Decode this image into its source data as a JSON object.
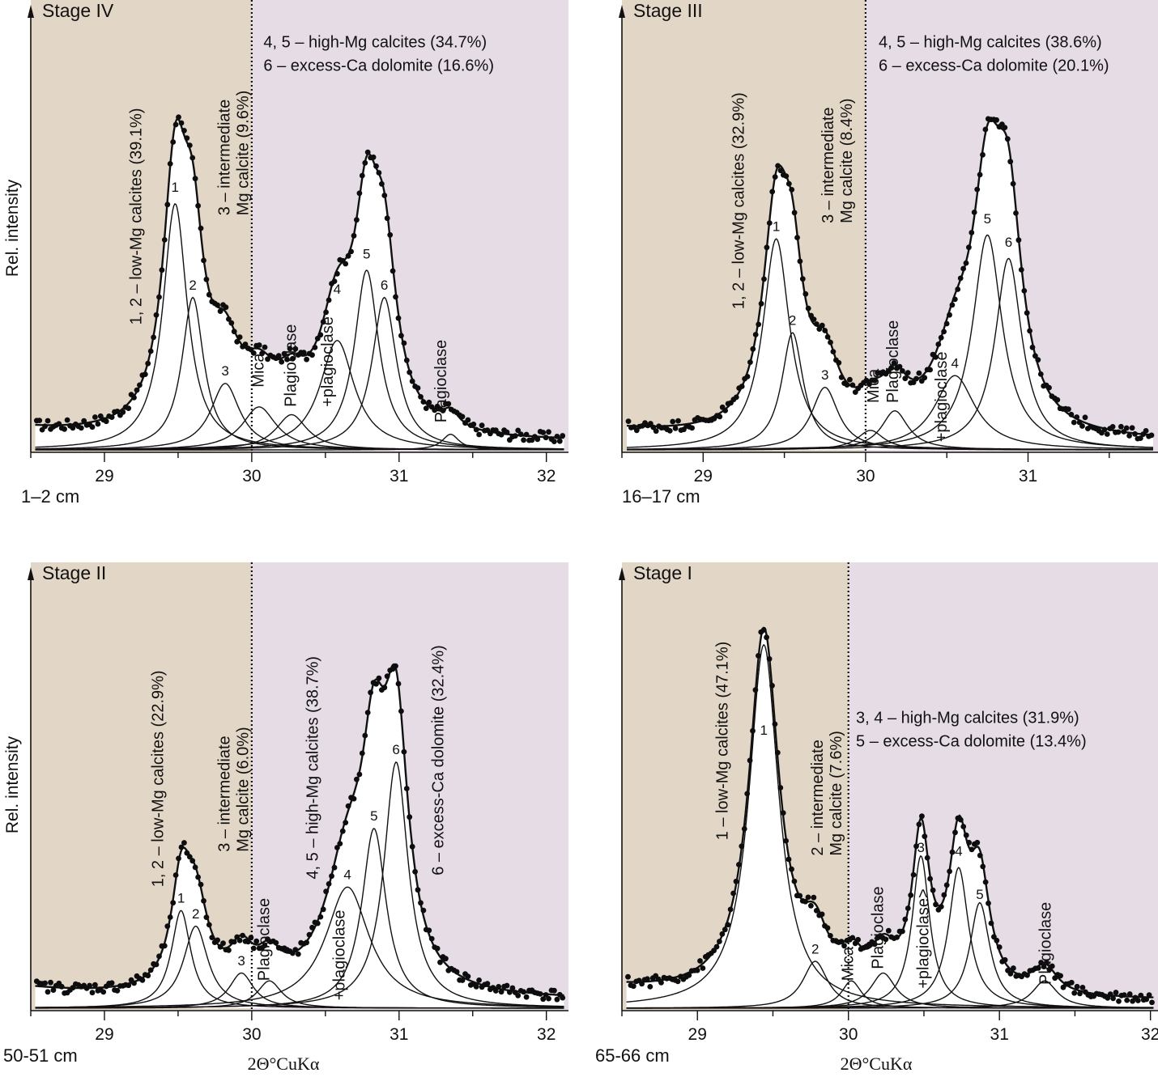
{
  "figure": {
    "y_axis_label": "Rel. intensity",
    "x_axis_label": "2Θ°CuKα"
  },
  "colors": {
    "left_zone": "#e2d6c6",
    "right_zone": "#e5dce6",
    "curve": "#111111",
    "points": "#0d0d0d"
  },
  "chart_data": [
    {
      "type": "line",
      "title": "Stage  IV",
      "depth": "1–2 cm",
      "xlim": [
        28.5,
        32.15
      ],
      "x_ticks": [
        29,
        30,
        31,
        32
      ],
      "zone_boundary": 30.0,
      "annotations": [
        {
          "text": "4, 5 – high-Mg calcites (34.7%)",
          "x": 30.08,
          "y": 1.03
        },
        {
          "text": "6 – excess-Ca dolomite (16.6%)",
          "x": 30.08,
          "y": 0.97
        }
      ],
      "vertical_labels": [
        {
          "lines": [
            "1, 2 – low-Mg calcites (39.1%)"
          ],
          "x": 29.25,
          "y": 0.32
        },
        {
          "lines": [
            "3 – intermediate",
            "Mg calcite (9.6%)"
          ],
          "x": 29.85,
          "y": 0.6
        },
        {
          "lines": [
            "Mica"
          ],
          "x": 30.08,
          "y": 0.16
        },
        {
          "lines": [
            "Plagioclase"
          ],
          "x": 30.3,
          "y": 0.11
        },
        {
          "lines": [
            "+plagioclase"
          ],
          "x": 30.55,
          "y": 0.11
        },
        {
          "lines": [
            "Plagioclase"
          ],
          "x": 31.32,
          "y": 0.07
        }
      ],
      "series": [
        {
          "label": "1",
          "center": 29.48,
          "height": 0.63,
          "width": 0.1,
          "label_y": 0.66
        },
        {
          "label": "2",
          "center": 29.6,
          "height": 0.39,
          "width": 0.09,
          "label_y": 0.41
        },
        {
          "label": "3",
          "center": 29.82,
          "height": 0.17,
          "width": 0.12,
          "label_y": 0.19
        },
        {
          "label": "",
          "center": 30.05,
          "height": 0.11,
          "width": 0.14
        },
        {
          "label": "",
          "center": 30.27,
          "height": 0.09,
          "width": 0.13
        },
        {
          "label": "4",
          "center": 30.58,
          "height": 0.28,
          "width": 0.14,
          "label_y": 0.4
        },
        {
          "label": "5",
          "center": 30.78,
          "height": 0.46,
          "width": 0.1,
          "label_y": 0.49
        },
        {
          "label": "6",
          "center": 30.9,
          "height": 0.39,
          "width": 0.1,
          "label_y": 0.41
        },
        {
          "label": "",
          "center": 31.35,
          "height": 0.04,
          "width": 0.07
        }
      ]
    },
    {
      "type": "line",
      "title": "Stage III",
      "depth": "16–17 cm",
      "xlim": [
        28.5,
        31.8
      ],
      "x_ticks": [
        29,
        30,
        31
      ],
      "zone_boundary": 30.0,
      "annotations": [
        {
          "text": "4, 5 – high-Mg calcites (38.6%)",
          "x": 30.08,
          "y": 1.03
        },
        {
          "text": "6 – excess-Ca dolomite (20.1%)",
          "x": 30.08,
          "y": 0.97
        }
      ],
      "vertical_labels": [
        {
          "lines": [
            "1, 2 – low-Mg calcites (32.9%)"
          ],
          "x": 29.25,
          "y": 0.36
        },
        {
          "lines": [
            "3 – intermediate",
            "Mg calcite (8.4%)"
          ],
          "x": 29.8,
          "y": 0.58
        },
        {
          "lines": [
            "Mica"
          ],
          "x": 30.08,
          "y": 0.12
        },
        {
          "lines": [
            "Plagioclase"
          ],
          "x": 30.2,
          "y": 0.12
        },
        {
          "lines": [
            "+plagioclase"
          ],
          "x": 30.5,
          "y": 0.02
        }
      ],
      "series": [
        {
          "label": "1",
          "center": 29.45,
          "height": 0.54,
          "width": 0.1,
          "label_y": 0.56
        },
        {
          "label": "2",
          "center": 29.55,
          "height": 0.3,
          "width": 0.08,
          "label_y": 0.32
        },
        {
          "label": "3",
          "center": 29.75,
          "height": 0.16,
          "width": 0.1,
          "label_y": 0.18
        },
        {
          "label": "",
          "center": 30.03,
          "height": 0.05,
          "width": 0.1
        },
        {
          "label": "",
          "center": 30.18,
          "height": 0.1,
          "width": 0.1
        },
        {
          "label": "4",
          "center": 30.55,
          "height": 0.19,
          "width": 0.15,
          "label_y": 0.21
        },
        {
          "label": "5",
          "center": 30.75,
          "height": 0.55,
          "width": 0.11,
          "label_y": 0.58
        },
        {
          "label": "6",
          "center": 30.88,
          "height": 0.49,
          "width": 0.1,
          "label_y": 0.52
        }
      ]
    },
    {
      "type": "line",
      "title": "Stage II",
      "depth": "50-51 cm",
      "xlim": [
        28.5,
        32.15
      ],
      "x_ticks": [
        29,
        30,
        31,
        32
      ],
      "zone_boundary": 30.0,
      "annotations": [],
      "vertical_labels": [
        {
          "lines": [
            "1, 2 – low-Mg calcites (22.9%)"
          ],
          "x": 29.4,
          "y": 0.31
        },
        {
          "lines": [
            "3 – intermediate",
            "Mg calcite (6.0%)"
          ],
          "x": 29.85,
          "y": 0.4
        },
        {
          "lines": [
            "Plagioclase"
          ],
          "x": 30.12,
          "y": 0.07
        },
        {
          "lines": [
            "4, 5 – high-Mg calcites (38.7%)"
          ],
          "x": 30.45,
          "y": 0.33
        },
        {
          "lines": [
            "+plagioclase"
          ],
          "x": 30.63,
          "y": 0.02
        },
        {
          "lines": [
            "6 – excess-Ca dolomite (32.4%)"
          ],
          "x": 31.3,
          "y": 0.34
        }
      ],
      "series": [
        {
          "label": "1",
          "center": 29.52,
          "height": 0.25,
          "width": 0.08,
          "label_y": 0.27
        },
        {
          "label": "2",
          "center": 29.62,
          "height": 0.21,
          "width": 0.1,
          "label_y": 0.23
        },
        {
          "label": "3",
          "center": 29.93,
          "height": 0.09,
          "width": 0.1,
          "label_y": 0.11
        },
        {
          "label": "",
          "center": 30.12,
          "height": 0.07,
          "width": 0.1
        },
        {
          "label": "4",
          "center": 30.65,
          "height": 0.31,
          "width": 0.18,
          "label_y": 0.33
        },
        {
          "label": "5",
          "center": 30.83,
          "height": 0.46,
          "width": 0.1,
          "label_y": 0.48
        },
        {
          "label": "6",
          "center": 30.98,
          "height": 0.63,
          "width": 0.1,
          "label_y": 0.65
        }
      ]
    },
    {
      "type": "line",
      "title": "Stage I",
      "depth": "65-66 cm",
      "xlim": [
        28.5,
        32.05
      ],
      "x_ticks": [
        29,
        30,
        31,
        32
      ],
      "zone_boundary": 30.0,
      "annotations": [
        {
          "text": "3, 4 – high-Mg calcites (31.9%)",
          "x": 30.05,
          "y": 0.73
        },
        {
          "text": "5 – excess-Ca dolomite (13.4%)",
          "x": 30.05,
          "y": 0.67
        }
      ],
      "vertical_labels": [
        {
          "lines": [
            "1 – low-Mg calcites (47.1%)"
          ],
          "x": 29.2,
          "y": 0.43
        },
        {
          "lines": [
            "2 – intermediate",
            "Mg calcite (7.6%)"
          ],
          "x": 29.83,
          "y": 0.39
        },
        {
          "lines": [
            "Mica"
          ],
          "x": 30.03,
          "y": 0.07
        },
        {
          "lines": [
            "Plagioclase"
          ],
          "x": 30.23,
          "y": 0.1
        },
        {
          "lines": [
            "+plagioclase>"
          ],
          "x": 30.53,
          "y": 0.05
        },
        {
          "lines": [
            "Plagioclase"
          ],
          "x": 31.34,
          "y": 0.06
        }
      ],
      "series": [
        {
          "label": "1",
          "center": 29.44,
          "height": 0.93,
          "width": 0.12,
          "label_y": 0.7
        },
        {
          "label": "2",
          "center": 29.78,
          "height": 0.12,
          "width": 0.1,
          "label_y": 0.14
        },
        {
          "label": "",
          "center": 30.02,
          "height": 0.07,
          "width": 0.08
        },
        {
          "label": "",
          "center": 30.23,
          "height": 0.09,
          "width": 0.1
        },
        {
          "label": "3",
          "center": 30.48,
          "height": 0.39,
          "width": 0.07,
          "label_y": 0.4
        },
        {
          "label": "4",
          "center": 30.73,
          "height": 0.36,
          "width": 0.08,
          "label_y": 0.39
        },
        {
          "label": "5",
          "center": 30.87,
          "height": 0.27,
          "width": 0.08,
          "label_y": 0.28
        },
        {
          "label": "",
          "center": 31.3,
          "height": 0.07,
          "width": 0.1
        }
      ]
    }
  ]
}
